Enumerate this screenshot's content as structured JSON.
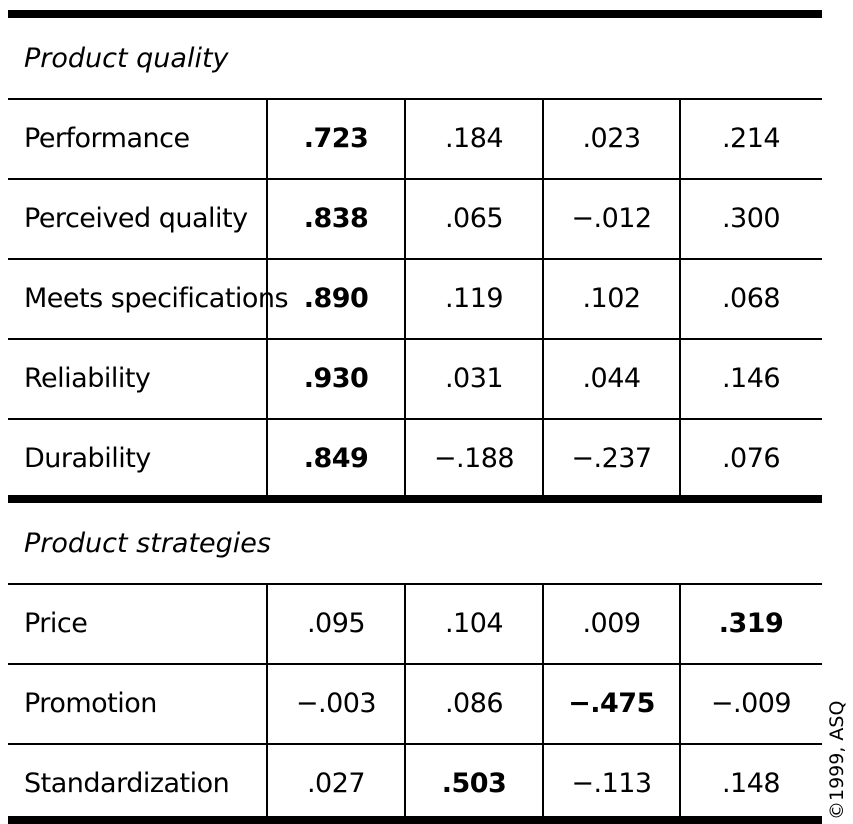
{
  "sections": [
    {
      "title": "Product quality",
      "rows": [
        {
          "label": "Performance",
          "cells": [
            ".723",
            ".184",
            ".023",
            ".214"
          ],
          "bold_column": 0
        },
        {
          "label": "Perceived quality",
          "cells": [
            ".838",
            ".065",
            "−.012",
            ".300"
          ],
          "bold_column": 0
        },
        {
          "label": "Meets specifications",
          "cells": [
            ".890",
            ".119",
            ".102",
            ".068"
          ],
          "bold_column": 0
        },
        {
          "label": "Reliability",
          "cells": [
            ".930",
            ".031",
            ".044",
            ".146"
          ],
          "bold_column": 0
        },
        {
          "label": "Durability",
          "cells": [
            ".849",
            "−.188",
            "−.237",
            ".076"
          ],
          "bold_column": 0
        }
      ]
    },
    {
      "title": "Product strategies",
      "rows": [
        {
          "label": "Price",
          "cells": [
            ".095",
            ".104",
            ".009",
            ".319"
          ],
          "bold_column": 3
        },
        {
          "label": "Promotion",
          "cells": [
            "−.003",
            ".086",
            "−.475",
            "−.009"
          ],
          "bold_column": 2
        },
        {
          "label": "Standardization",
          "cells": [
            ".027",
            ".503",
            "−.113",
            ".148"
          ],
          "bold_column": 1
        }
      ]
    }
  ],
  "copyright": "©1999, ASQ"
}
